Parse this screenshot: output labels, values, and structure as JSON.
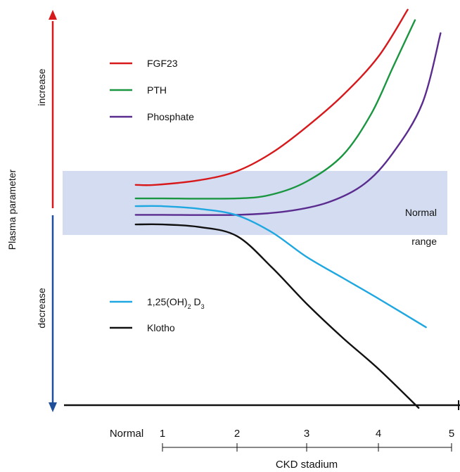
{
  "chart_data": {
    "type": "line",
    "title": "",
    "ylabel": "Plasma parameter",
    "y_direction_labels": {
      "up": "increase",
      "down": "decrease"
    },
    "xlabel": "CKD stadium",
    "x_ticks": [
      "Normal",
      "1",
      "2",
      "3",
      "4",
      "5"
    ],
    "normal_range": {
      "label_line1": "Normal",
      "label_line2": "range",
      "color": "#d3dcf0"
    },
    "axis_colors": {
      "increase": "#d7191c",
      "decrease": "#1f4e9a",
      "baseline": "#111111"
    },
    "legend_groups": [
      {
        "position": "upper-left",
        "entries": [
          {
            "name": "FGF23",
            "color": "#d7191c"
          },
          {
            "name": "PTH",
            "color": "#1a9641"
          },
          {
            "name": "Phosphate",
            "color": "#5b2c8f"
          }
        ]
      },
      {
        "position": "lower-left",
        "entries": [
          {
            "name": "1,25(OH)",
            "sub1": "2",
            "mid": " D",
            "sub2": "3",
            "color": "#1ea7e1"
          },
          {
            "name": "Klotho",
            "color": "#111111"
          }
        ]
      }
    ],
    "series": [
      {
        "name": "FGF23",
        "color": "#d7191c",
        "points": [
          [
            0.25,
            0.87
          ],
          [
            0.8,
            0.87
          ],
          [
            1.5,
            1.05
          ],
          [
            2.0,
            1.4
          ],
          [
            2.5,
            2.1
          ],
          [
            3.0,
            3.1
          ],
          [
            3.5,
            4.3
          ],
          [
            4.0,
            5.8
          ],
          [
            4.4,
            7.6
          ]
        ]
      },
      {
        "name": "PTH",
        "color": "#1a9641",
        "points": [
          [
            0.25,
            0.35
          ],
          [
            1.0,
            0.35
          ],
          [
            2.0,
            0.35
          ],
          [
            2.5,
            0.5
          ],
          [
            3.0,
            1.0
          ],
          [
            3.5,
            2.0
          ],
          [
            3.9,
            3.6
          ],
          [
            4.2,
            5.4
          ],
          [
            4.5,
            7.2
          ]
        ]
      },
      {
        "name": "Phosphate",
        "color": "#5b2c8f",
        "points": [
          [
            0.25,
            -0.28
          ],
          [
            1.0,
            -0.28
          ],
          [
            2.0,
            -0.28
          ],
          [
            2.7,
            -0.15
          ],
          [
            3.3,
            0.2
          ],
          [
            3.8,
            0.9
          ],
          [
            4.2,
            2.1
          ],
          [
            4.6,
            4.0
          ],
          [
            4.85,
            6.7
          ]
        ]
      },
      {
        "name": "1,25(OH)2 D3",
        "color": "#1ea7e1",
        "points": [
          [
            0.25,
            0.05
          ],
          [
            1.0,
            0.05
          ],
          [
            1.5,
            -0.05
          ],
          [
            2.0,
            -0.3
          ],
          [
            2.5,
            -0.95
          ],
          [
            3.0,
            -1.9
          ],
          [
            3.5,
            -2.7
          ],
          [
            4.0,
            -3.5
          ],
          [
            4.65,
            -4.6
          ]
        ]
      },
      {
        "name": "Klotho",
        "color": "#111111",
        "points": [
          [
            0.25,
            -0.65
          ],
          [
            1.0,
            -0.65
          ],
          [
            1.5,
            -0.75
          ],
          [
            2.0,
            -1.1
          ],
          [
            2.5,
            -2.3
          ],
          [
            3.0,
            -3.7
          ],
          [
            3.5,
            -5.0
          ],
          [
            4.0,
            -6.2
          ],
          [
            4.55,
            -7.7
          ]
        ]
      }
    ]
  }
}
